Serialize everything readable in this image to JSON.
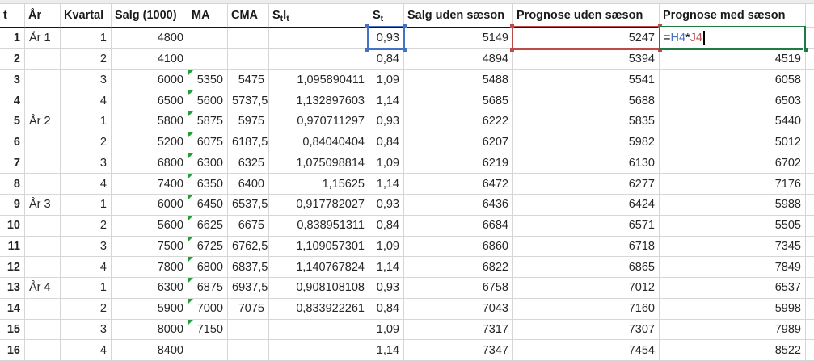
{
  "colors": {
    "grid_line": "#d6d6d6",
    "header_border": "#151515",
    "blue_reference": "#4472c4",
    "red_reference": "#bf4b48",
    "green_edit_border": "#1f7a44",
    "error_triangle": "#21a038",
    "red_cell_fill": "#f7e4e3"
  },
  "table": {
    "columns": [
      {
        "key": "t",
        "label": "t",
        "align": "ar"
      },
      {
        "key": "ar",
        "label": "År",
        "align": "al"
      },
      {
        "key": "kvartal",
        "label": "Kvartal",
        "align": "ar"
      },
      {
        "key": "salg",
        "label": "Salg (1000)",
        "align": "ar"
      },
      {
        "key": "ma",
        "label": "MA",
        "align": "ar"
      },
      {
        "key": "cma",
        "label": "CMA",
        "align": "ar"
      },
      {
        "key": "stit",
        "label": "StIt",
        "segments": [
          {
            "t": "S"
          },
          {
            "t": "t",
            "sub": true
          },
          {
            "t": "I"
          },
          {
            "t": "t",
            "sub": true
          }
        ],
        "align": "ar"
      },
      {
        "key": "st",
        "label": "St",
        "segments": [
          {
            "t": "S"
          },
          {
            "t": "t",
            "sub": true
          }
        ],
        "align": "ar"
      },
      {
        "key": "salg_uden",
        "label": "Salg uden sæson",
        "align": "ar"
      },
      {
        "key": "prog_uden",
        "label": "Prognose uden sæson",
        "align": "ar"
      },
      {
        "key": "prog_med",
        "label": "Prognose med sæson",
        "align": "ar"
      }
    ],
    "rows": [
      {
        "cells": [
          "1",
          "År 1",
          "1",
          "4800",
          "",
          "",
          "",
          "0,93",
          "5149",
          "5247",
          ""
        ]
      },
      {
        "cells": [
          "2",
          "",
          "2",
          "4100",
          "",
          "",
          "",
          "0,84",
          "4894",
          "5394",
          "4519"
        ]
      },
      {
        "cells": [
          "3",
          "",
          "3",
          "6000",
          "5350",
          "5475",
          "1,095890411",
          "1,09",
          "5488",
          "5541",
          "6058"
        ]
      },
      {
        "cells": [
          "4",
          "",
          "4",
          "6500",
          "5600",
          "5737,5",
          "1,132897603",
          "1,14",
          "5685",
          "5688",
          "6503"
        ]
      },
      {
        "cells": [
          "5",
          "År 2",
          "1",
          "5800",
          "5875",
          "5975",
          "0,970711297",
          "0,93",
          "6222",
          "5835",
          "5440"
        ]
      },
      {
        "cells": [
          "6",
          "",
          "2",
          "5200",
          "6075",
          "6187,5",
          "0,84040404",
          "0,84",
          "6207",
          "5982",
          "5012"
        ]
      },
      {
        "cells": [
          "7",
          "",
          "3",
          "6800",
          "6300",
          "6325",
          "1,075098814",
          "1,09",
          "6219",
          "6130",
          "6702"
        ]
      },
      {
        "cells": [
          "8",
          "",
          "4",
          "7400",
          "6350",
          "6400",
          "1,15625",
          "1,14",
          "6472",
          "6277",
          "7176"
        ]
      },
      {
        "cells": [
          "9",
          "År 3",
          "1",
          "6000",
          "6450",
          "6537,5",
          "0,917782027",
          "0,93",
          "6436",
          "6424",
          "5988"
        ]
      },
      {
        "cells": [
          "10",
          "",
          "2",
          "5600",
          "6625",
          "6675",
          "0,838951311",
          "0,84",
          "6684",
          "6571",
          "5505"
        ]
      },
      {
        "cells": [
          "11",
          "",
          "3",
          "7500",
          "6725",
          "6762,5",
          "1,109057301",
          "1,09",
          "6860",
          "6718",
          "7345"
        ]
      },
      {
        "cells": [
          "12",
          "",
          "4",
          "7800",
          "6800",
          "6837,5",
          "1,140767824",
          "1,14",
          "6822",
          "6865",
          "7849"
        ]
      },
      {
        "cells": [
          "13",
          "År 4",
          "1",
          "6300",
          "6875",
          "6937,5",
          "0,908108108",
          "0,93",
          "6758",
          "7012",
          "6537"
        ]
      },
      {
        "cells": [
          "14",
          "",
          "2",
          "5900",
          "7000",
          "7075",
          "0,833922261",
          "0,84",
          "7043",
          "7160",
          "5998"
        ]
      },
      {
        "cells": [
          "15",
          "",
          "3",
          "8000",
          "7150",
          "",
          "",
          "1,09",
          "7317",
          "7307",
          "7989"
        ]
      },
      {
        "cells": [
          "16",
          "",
          "4",
          "8400",
          "",
          "",
          "",
          "1,14",
          "7347",
          "7454",
          "8522"
        ]
      }
    ]
  },
  "highlights": {
    "blue_ref_cell": {
      "row": 0,
      "col": "st"
    },
    "red_ref_cell": {
      "row": 0,
      "col": "prog_uden"
    },
    "edit_cell": {
      "row": 0,
      "col": "prog_med"
    }
  },
  "formula": {
    "tokens": [
      {
        "text": "=",
        "color": "#000000"
      },
      {
        "text": "H4",
        "color": "#4472c4"
      },
      {
        "text": "*",
        "color": "#000000"
      },
      {
        "text": "J4",
        "color": "#c0504d"
      }
    ]
  }
}
